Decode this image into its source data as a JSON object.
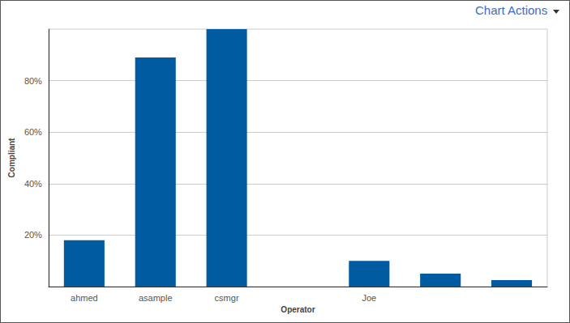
{
  "chart_data": {
    "type": "bar",
    "annotation": "Chart Actions",
    "x_label": "Operator",
    "y_label": "Compliant",
    "categories": [
      "ahmed",
      "asample",
      "csmgr",
      null,
      "Joe",
      null,
      null
    ],
    "values": [
      18,
      89,
      100,
      0,
      10,
      5,
      2.5
    ],
    "color": "#005ba1",
    "ylim": [
      0,
      100
    ],
    "yticks": [
      {
        "value": 20,
        "label": "20%"
      },
      {
        "value": 40,
        "label": "40%"
      },
      {
        "value": 60,
        "label": "60%"
      },
      {
        "value": 80,
        "label": "80%"
      }
    ],
    "grid": true
  }
}
